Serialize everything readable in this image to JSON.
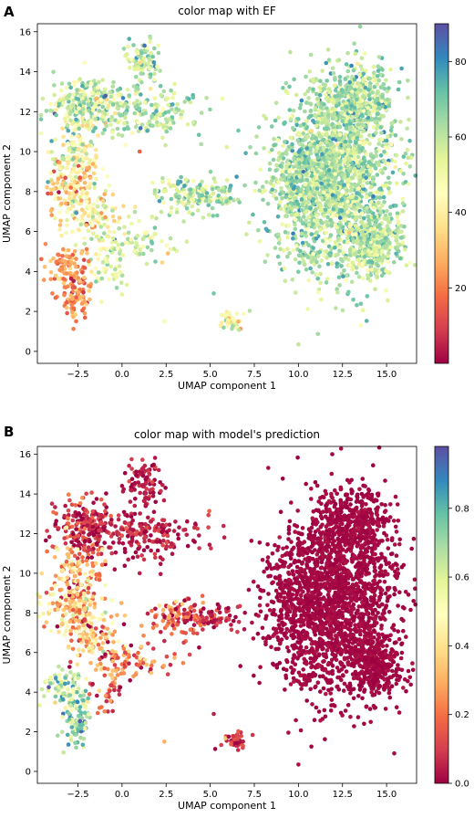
{
  "chart_data": [
    {
      "panel": "A",
      "type": "scatter",
      "title": "color map with EF",
      "xlabel": "UMAP component 1",
      "ylabel": "UMAP component 2",
      "xlim": [
        -4.8,
        16.7
      ],
      "ylim": [
        -0.6,
        16.4
      ],
      "xticks": [
        -2.5,
        0.0,
        2.5,
        5.0,
        7.5,
        10.0,
        12.5,
        15.0
      ],
      "xticklabels": [
        "−2.5",
        "0.0",
        "2.5",
        "5.0",
        "7.5",
        "10.0",
        "12.5",
        "15.0"
      ],
      "yticks": [
        0,
        2,
        4,
        6,
        8,
        10,
        12,
        14,
        16
      ],
      "yticklabels": [
        "0",
        "2",
        "4",
        "6",
        "8",
        "10",
        "12",
        "14",
        "16"
      ],
      "colorbar": {
        "min": 0,
        "max": 90,
        "ticks": [
          20,
          40,
          60,
          80
        ],
        "ticklabels": [
          "20",
          "40",
          "60",
          "80"
        ],
        "colormap": "Spectral"
      },
      "clusters": [
        {
          "x": 12.4,
          "y": 9.0,
          "sx": 1.6,
          "sy": 2.6,
          "n": 1600,
          "v": 62,
          "vs": 8
        },
        {
          "x": 10.2,
          "y": 8.4,
          "sx": 1.2,
          "sy": 1.6,
          "n": 450,
          "v": 63,
          "vs": 8
        },
        {
          "x": 13.5,
          "y": 12.5,
          "sx": 0.9,
          "sy": 0.9,
          "n": 260,
          "v": 63,
          "vs": 8
        },
        {
          "x": 14.4,
          "y": 5.3,
          "sx": 0.8,
          "sy": 0.7,
          "n": 300,
          "v": 60,
          "vs": 8
        },
        {
          "x": 10.5,
          "y": 4.7,
          "sx": 0.4,
          "sy": 0.3,
          "n": 30,
          "v": 62,
          "vs": 6
        },
        {
          "x": -2.0,
          "y": 12.3,
          "sx": 1.0,
          "sy": 0.7,
          "n": 230,
          "v": 58,
          "vs": 12
        },
        {
          "x": 1.5,
          "y": 12.0,
          "sx": 1.5,
          "sy": 0.6,
          "n": 180,
          "v": 62,
          "vs": 9
        },
        {
          "x": 1.2,
          "y": 14.5,
          "sx": 0.5,
          "sy": 0.6,
          "n": 90,
          "v": 60,
          "vs": 9
        },
        {
          "x": -2.6,
          "y": 9.8,
          "sx": 0.8,
          "sy": 0.9,
          "n": 130,
          "v": 50,
          "vs": 12
        },
        {
          "x": -3.0,
          "y": 8.4,
          "sx": 0.8,
          "sy": 0.6,
          "n": 110,
          "v": 35,
          "vs": 12
        },
        {
          "x": -1.8,
          "y": 6.8,
          "sx": 0.9,
          "sy": 0.6,
          "n": 110,
          "v": 45,
          "vs": 12
        },
        {
          "x": 0.5,
          "y": 5.5,
          "sx": 1.2,
          "sy": 0.5,
          "n": 90,
          "v": 55,
          "vs": 10
        },
        {
          "x": -0.8,
          "y": 4.0,
          "sx": 0.5,
          "sy": 0.5,
          "n": 40,
          "v": 55,
          "vs": 8
        },
        {
          "x": -3.2,
          "y": 4.3,
          "sx": 0.7,
          "sy": 0.5,
          "n": 80,
          "v": 23,
          "vs": 8
        },
        {
          "x": -2.6,
          "y": 2.8,
          "sx": 0.4,
          "sy": 0.7,
          "n": 100,
          "v": 22,
          "vs": 8
        },
        {
          "x": 3.6,
          "y": 7.8,
          "sx": 1.0,
          "sy": 0.5,
          "n": 120,
          "v": 58,
          "vs": 10
        },
        {
          "x": 5.5,
          "y": 7.8,
          "sx": 0.8,
          "sy": 0.3,
          "n": 50,
          "v": 62,
          "vs": 8
        },
        {
          "x": 6.3,
          "y": 1.5,
          "sx": 0.4,
          "sy": 0.25,
          "n": 40,
          "v": 50,
          "vs": 10
        }
      ],
      "singletons": [
        {
          "x": 5.2,
          "y": 2.9,
          "v": 70
        },
        {
          "x": 2.4,
          "y": 1.5,
          "v": 48
        },
        {
          "x": 10.0,
          "y": 0.35,
          "v": 60
        },
        {
          "x": 2.3,
          "y": 10.7,
          "v": 55
        },
        {
          "x": 1.0,
          "y": 10.0,
          "v": 15
        },
        {
          "x": 3.5,
          "y": 6.5,
          "v": 60
        },
        {
          "x": 2.6,
          "y": 4.9,
          "v": 30
        }
      ]
    },
    {
      "panel": "B",
      "type": "scatter",
      "title": "color map with model's prediction",
      "xlabel": "UMAP component 1",
      "ylabel": "UMAP component 2",
      "xlim": [
        -4.8,
        16.7
      ],
      "ylim": [
        -0.6,
        16.4
      ],
      "xticks": [
        -2.5,
        0.0,
        2.5,
        5.0,
        7.5,
        10.0,
        12.5,
        15.0
      ],
      "xticklabels": [
        "−2.5",
        "0.0",
        "2.5",
        "5.0",
        "7.5",
        "10.0",
        "12.5",
        "15.0"
      ],
      "yticks": [
        0,
        2,
        4,
        6,
        8,
        10,
        12,
        14,
        16
      ],
      "yticklabels": [
        "0",
        "2",
        "4",
        "6",
        "8",
        "10",
        "12",
        "14",
        "16"
      ],
      "colorbar": {
        "min": 0,
        "max": 0.98,
        "ticks": [
          0.0,
          0.2,
          0.4,
          0.6,
          0.8
        ],
        "ticklabels": [
          "0.0",
          "0.2",
          "0.4",
          "0.6",
          "0.8"
        ],
        "colormap": "Spectral"
      },
      "clusters": [
        {
          "x": 12.4,
          "y": 9.0,
          "sx": 1.6,
          "sy": 2.6,
          "n": 1600,
          "v": 0.01,
          "vs": 0.01
        },
        {
          "x": 10.2,
          "y": 8.4,
          "sx": 1.2,
          "sy": 1.6,
          "n": 450,
          "v": 0.01,
          "vs": 0.01
        },
        {
          "x": 13.5,
          "y": 12.5,
          "sx": 0.9,
          "sy": 0.9,
          "n": 260,
          "v": 0.01,
          "vs": 0.01
        },
        {
          "x": 14.4,
          "y": 5.3,
          "sx": 0.8,
          "sy": 0.7,
          "n": 300,
          "v": 0.01,
          "vs": 0.01
        },
        {
          "x": 10.5,
          "y": 4.7,
          "sx": 0.4,
          "sy": 0.3,
          "n": 30,
          "v": 0.01,
          "vs": 0.01
        },
        {
          "x": -2.0,
          "y": 12.3,
          "sx": 1.0,
          "sy": 0.7,
          "n": 230,
          "v": 0.08,
          "vs": 0.08
        },
        {
          "x": 1.5,
          "y": 12.0,
          "sx": 1.5,
          "sy": 0.6,
          "n": 180,
          "v": 0.05,
          "vs": 0.05
        },
        {
          "x": 1.2,
          "y": 14.5,
          "sx": 0.5,
          "sy": 0.6,
          "n": 90,
          "v": 0.04,
          "vs": 0.04
        },
        {
          "x": -2.6,
          "y": 9.8,
          "sx": 0.8,
          "sy": 0.9,
          "n": 130,
          "v": 0.3,
          "vs": 0.12
        },
        {
          "x": -3.0,
          "y": 8.4,
          "sx": 0.8,
          "sy": 0.6,
          "n": 110,
          "v": 0.35,
          "vs": 0.15
        },
        {
          "x": -1.8,
          "y": 6.8,
          "sx": 0.9,
          "sy": 0.6,
          "n": 110,
          "v": 0.3,
          "vs": 0.15
        },
        {
          "x": 0.5,
          "y": 5.5,
          "sx": 1.2,
          "sy": 0.5,
          "n": 90,
          "v": 0.2,
          "vs": 0.12
        },
        {
          "x": -0.8,
          "y": 4.0,
          "sx": 0.5,
          "sy": 0.5,
          "n": 40,
          "v": 0.2,
          "vs": 0.1
        },
        {
          "x": -3.2,
          "y": 4.3,
          "sx": 0.7,
          "sy": 0.5,
          "n": 80,
          "v": 0.65,
          "vs": 0.12
        },
        {
          "x": -2.6,
          "y": 2.8,
          "sx": 0.4,
          "sy": 0.7,
          "n": 100,
          "v": 0.72,
          "vs": 0.12
        },
        {
          "x": 3.6,
          "y": 7.8,
          "sx": 1.0,
          "sy": 0.5,
          "n": 120,
          "v": 0.15,
          "vs": 0.1
        },
        {
          "x": 5.5,
          "y": 7.8,
          "sx": 0.8,
          "sy": 0.3,
          "n": 50,
          "v": 0.05,
          "vs": 0.05
        },
        {
          "x": 6.3,
          "y": 1.5,
          "sx": 0.4,
          "sy": 0.25,
          "n": 40,
          "v": 0.08,
          "vs": 0.08
        }
      ],
      "singletons": [
        {
          "x": 5.2,
          "y": 2.9,
          "v": 0.05
        },
        {
          "x": 2.4,
          "y": 1.5,
          "v": 0.3
        },
        {
          "x": 10.0,
          "y": 0.35,
          "v": 0.02
        },
        {
          "x": 2.3,
          "y": 10.7,
          "v": 0.05
        },
        {
          "x": 1.0,
          "y": 10.0,
          "v": 0.05
        },
        {
          "x": 3.5,
          "y": 6.5,
          "v": 0.1
        },
        {
          "x": 2.6,
          "y": 4.9,
          "v": 0.1
        }
      ]
    }
  ]
}
